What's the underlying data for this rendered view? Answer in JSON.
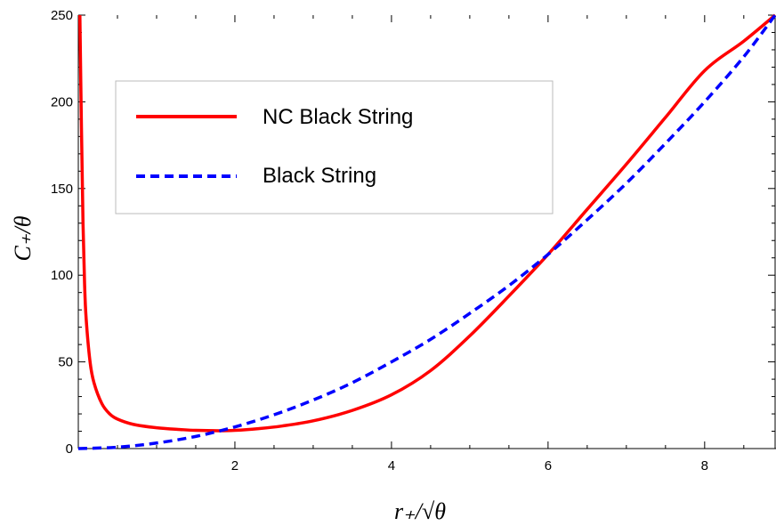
{
  "chart_data": {
    "type": "line",
    "title": "",
    "xlabel": "r₊/√θ",
    "ylabel": "C₊/θ",
    "xlim": [
      0,
      8.9
    ],
    "ylim": [
      0,
      250
    ],
    "x_ticks": [
      2,
      4,
      6,
      8
    ],
    "y_ticks": [
      0,
      50,
      100,
      150,
      200,
      250
    ],
    "grid": false,
    "legend_position": "top-left",
    "series": [
      {
        "name": "NC Black String",
        "color": "#ff0000",
        "dash": "solid",
        "x": [
          0.02,
          0.04,
          0.06,
          0.08,
          0.1,
          0.15,
          0.2,
          0.3,
          0.4,
          0.5,
          0.7,
          1.0,
          1.3,
          1.5,
          1.8,
          2.0,
          2.3,
          2.6,
          3.0,
          3.5,
          4.0,
          4.5,
          5.0,
          5.5,
          6.0,
          6.5,
          7.0,
          7.5,
          8.0,
          8.5,
          8.9
        ],
        "y": [
          250,
          185,
          130,
          95,
          75,
          50,
          38,
          26,
          20,
          17,
          14,
          12,
          11,
          10.5,
          10.3,
          10.5,
          11.5,
          13,
          16,
          22,
          31,
          45,
          65,
          88,
          112,
          138,
          164,
          191,
          218,
          235,
          250
        ]
      },
      {
        "name": "Black String",
        "color": "#0000ff",
        "dash": "dashed",
        "x": [
          0.0,
          0.5,
          1.0,
          1.5,
          2.0,
          2.5,
          3.0,
          3.5,
          4.0,
          4.5,
          5.0,
          5.5,
          6.0,
          6.5,
          7.0,
          7.5,
          8.0,
          8.5,
          8.9
        ],
        "y": [
          0,
          0.8,
          3.2,
          7,
          12.5,
          19.5,
          28,
          38,
          50,
          63,
          78,
          94,
          112,
          132,
          153,
          176,
          200,
          226,
          250
        ]
      }
    ]
  }
}
